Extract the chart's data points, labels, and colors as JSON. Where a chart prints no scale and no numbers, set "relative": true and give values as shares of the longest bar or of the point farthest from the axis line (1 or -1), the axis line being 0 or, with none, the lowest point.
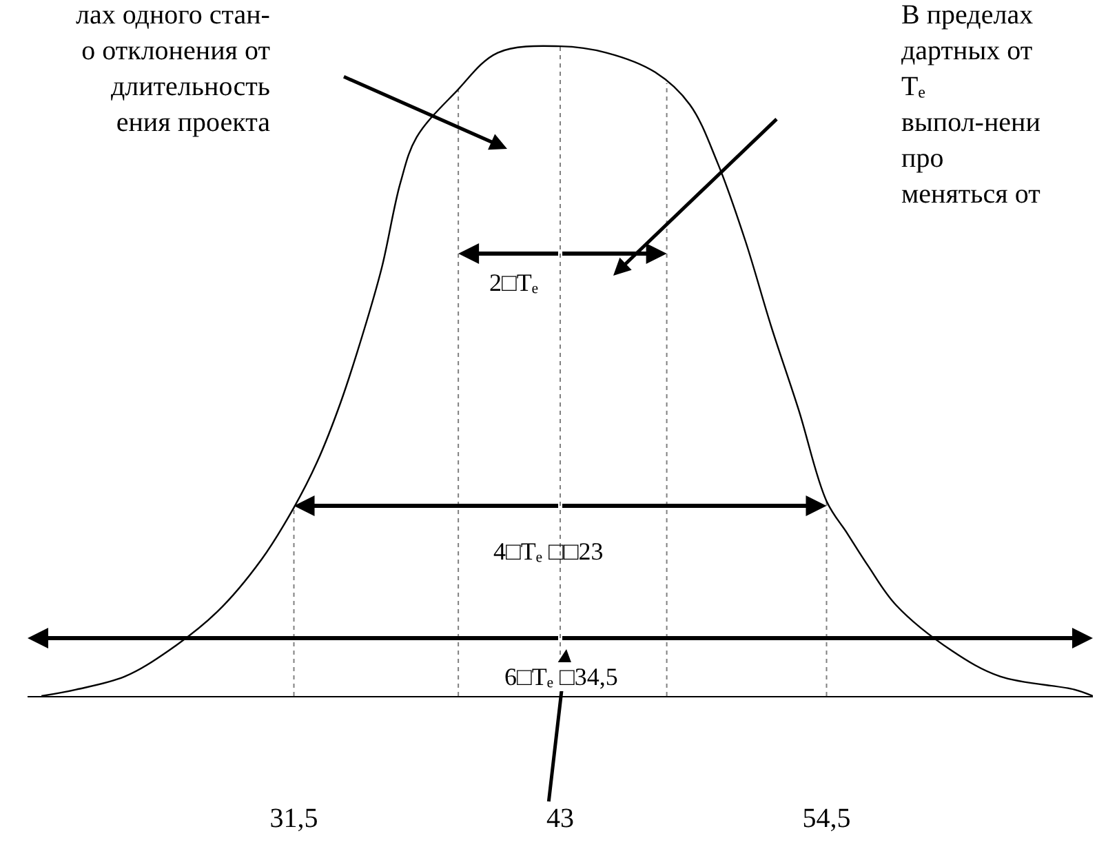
{
  "chart_data": {
    "type": "line",
    "relative": true,
    "color": "#000000",
    "x": [
      20.6,
      22.1,
      24.2,
      26.1,
      28.2,
      30.1,
      31.5,
      32.5,
      33.5,
      34.5,
      35.3,
      36.1,
      36.8,
      38.5,
      40.3,
      43.0,
      45.0,
      47.1,
      48.6,
      49.8,
      51.0,
      52.1,
      53.3,
      54.5,
      55.4,
      56.3,
      57.5,
      59.9,
      62.0,
      65.2,
      66.0
    ],
    "values": [
      0,
      0.01,
      0.03,
      0.07,
      0.13,
      0.21,
      0.29,
      0.36,
      0.45,
      0.56,
      0.66,
      0.79,
      0.86,
      0.93,
      0.99,
      1,
      0.99,
      0.96,
      0.91,
      0.82,
      0.7,
      0.57,
      0.44,
      0.3,
      0.25,
      0.2,
      0.14,
      0.07,
      0.03,
      0.01,
      0
    ],
    "xlim": [
      20,
      66
    ],
    "xticks": [
      {
        "value": 31.5,
        "label": "31,5"
      },
      43,
      {
        "value": 54.5,
        "label": "54,5"
      }
    ],
    "ref_lines": [
      {
        "axis": "x",
        "value": 31.5,
        "color": "#808080",
        "line_style": "dotted"
      },
      {
        "axis": "x",
        "value": 38.6,
        "color": "#808080",
        "line_style": "dotted"
      },
      {
        "axis": "x",
        "value": 43,
        "color": "#808080",
        "line_style": "dotted"
      },
      {
        "axis": "x",
        "value": 47.6,
        "color": "#808080",
        "line_style": "dotted"
      },
      {
        "axis": "x",
        "value": 54.5,
        "color": "#808080",
        "line_style": "dotted"
      }
    ],
    "annotations": [
      "лах одного стан-\nо отклонения от\nдлительность\nения проекта",
      "В пределах\nдартных от\nTₑ\nвыпол-нени\nпро\nменяться от",
      "2□Tₑ",
      "4□Tₑ □□23",
      "6□Tₑ □34,5"
    ]
  }
}
